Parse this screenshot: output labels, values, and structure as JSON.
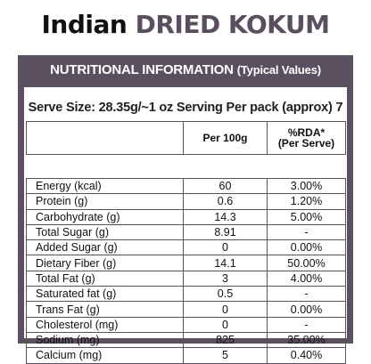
{
  "header": {
    "word1": "Indian",
    "word2": "DRIED KOKUM"
  },
  "panel": {
    "title": "NUTRITIONAL INFORMATION",
    "title_sub": "(Typical Values)",
    "serve_size": "Serve Size: 28.35g/~1 oz Serving Per pack (approx) 7"
  },
  "table": {
    "headers": [
      "",
      "Per 100g",
      "%RDA*",
      "(Per Serve)"
    ],
    "rows": [
      {
        "name": "Energy (kcal)",
        "per100": "60",
        "rda": "3.00%"
      },
      {
        "name": "Protein (g)",
        "per100": "0.6",
        "rda": "1.20%"
      },
      {
        "name": "Carbohydrate (g)",
        "per100": "14.3",
        "rda": "5.00%"
      },
      {
        "name": "Total Sugar (g)",
        "per100": "8.91",
        "rda": "-"
      },
      {
        "name": "Added Sugar (g)",
        "per100": "0",
        "rda": "0.00%"
      },
      {
        "name": "Dietary Fiber (g)",
        "per100": "14.1",
        "rda": "50.00%"
      },
      {
        "name": "Total Fat (g)",
        "per100": "3",
        "rda": "4.00%"
      },
      {
        "name": "Saturated fat (g)",
        "per100": "0.5",
        "rda": "-"
      },
      {
        "name": "Trans Fat (g)",
        "per100": "0",
        "rda": "0.00%"
      },
      {
        "name": "Cholesterol (mg)",
        "per100": "0",
        "rda": "-"
      },
      {
        "name": "Sodium (mg)",
        "per100": "825",
        "rda": "35.00%"
      },
      {
        "name": "Calcium (mg)",
        "per100": "5",
        "rda": "0.40%"
      }
    ]
  },
  "colors": {
    "panel": "#5b505f",
    "accent_text": "#5a4f5e"
  }
}
